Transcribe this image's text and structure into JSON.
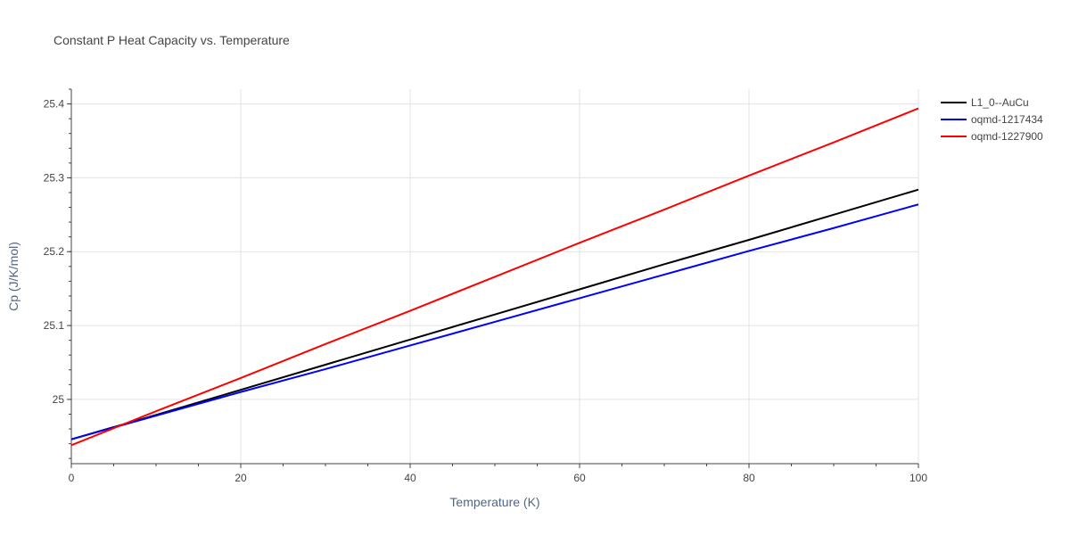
{
  "chart_data": {
    "type": "line",
    "title": "Constant P Heat Capacity vs. Temperature",
    "xlabel": "Temperature (K)",
    "ylabel": "Cp (J/K/mol)",
    "xlim": [
      0,
      100
    ],
    "ylim": [
      24.913,
      25.42
    ],
    "x_ticks": [
      0,
      20,
      40,
      60,
      80,
      100
    ],
    "y_ticks": [
      25,
      25.1,
      25.2,
      25.3,
      25.4
    ],
    "y_tick_labels": [
      "25",
      "25.1",
      "25.2",
      "25.3",
      "25.4"
    ],
    "x_minor_step": 5,
    "y_minor_step": 0.02,
    "grid": true,
    "legend_position": "top-right",
    "x": [
      0,
      10,
      20,
      30,
      40,
      50,
      60,
      70,
      80,
      90,
      100
    ],
    "series": [
      {
        "name": "L1_0--AuCu",
        "color": "#000000",
        "values": [
          24.946,
          24.979,
          25.013,
          25.047,
          25.081,
          25.115,
          25.149,
          25.183,
          25.216,
          25.25,
          25.284
        ]
      },
      {
        "name": "oqmd-1217434",
        "color": "#0000ff",
        "values": [
          24.946,
          24.978,
          25.01,
          25.041,
          25.073,
          25.105,
          25.137,
          25.169,
          25.201,
          25.232,
          25.264
        ]
      },
      {
        "name": "oqmd-1227900",
        "color": "#ff0000",
        "values": [
          24.938,
          24.984,
          25.029,
          25.075,
          25.12,
          25.166,
          25.212,
          25.257,
          25.303,
          25.348,
          25.394
        ]
      }
    ]
  }
}
